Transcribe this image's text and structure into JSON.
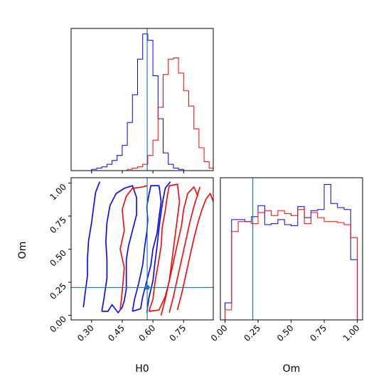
{
  "chart_data": {
    "type": "corner",
    "parameters": [
      "H0",
      "Om"
    ],
    "truth": {
      "H0": 0.572,
      "Om": 0.21
    },
    "colors": {
      "blue": "#0000ff",
      "red": "#ff0000",
      "truth": "#1f77b4"
    },
    "axes": {
      "H0": {
        "range": [
          0.2,
          0.895
        ],
        "ticks": [
          0.3,
          0.45,
          0.6,
          0.75
        ],
        "tick_labels": [
          "0.30",
          "0.45",
          "0.60",
          "0.75"
        ],
        "label": "H0"
      },
      "Om": {
        "range": [
          -0.035,
          1.04
        ],
        "ticks": [
          0.0,
          0.25,
          0.5,
          0.75,
          1.0
        ],
        "tick_labels": [
          "0.00",
          "0.25",
          "0.50",
          "0.75",
          "1.00"
        ],
        "label": "Om"
      }
    },
    "hist_H0": {
      "bin_edges": [
        0.2,
        0.225,
        0.25,
        0.275,
        0.3,
        0.325,
        0.35,
        0.375,
        0.4,
        0.425,
        0.45,
        0.475,
        0.5,
        0.525,
        0.55,
        0.575,
        0.6,
        0.625,
        0.65,
        0.675,
        0.7,
        0.725,
        0.75,
        0.775,
        0.8,
        0.825,
        0.85,
        0.875,
        0.895
      ],
      "blue": [
        0,
        0,
        0,
        0,
        1,
        2,
        3,
        5,
        8,
        12,
        20,
        38,
        60,
        88,
        108,
        103,
        75,
        41,
        14,
        5,
        2,
        1,
        0,
        0,
        0,
        0,
        0,
        0
      ],
      "red": [
        0,
        0,
        0,
        0,
        0,
        0,
        0,
        0,
        0,
        0,
        0,
        1,
        2,
        3,
        5,
        12,
        24,
        50,
        76,
        88,
        89,
        77,
        63,
        51,
        33,
        18,
        7,
        2
      ]
    },
    "hist_Om": {
      "bin_edges": [
        -0.035,
        0.0,
        0.05,
        0.1,
        0.15,
        0.2,
        0.25,
        0.3,
        0.35,
        0.4,
        0.45,
        0.5,
        0.55,
        0.6,
        0.65,
        0.7,
        0.75,
        0.8,
        0.85,
        0.9,
        0.95,
        1.0,
        1.04
      ],
      "blue": [
        0,
        17,
        100,
        100,
        98,
        103,
        114,
        95,
        96,
        100,
        95,
        94,
        113,
        102,
        109,
        110,
        135,
        116,
        112,
        110,
        60,
        0
      ],
      "red": [
        0,
        10,
        88,
        98,
        98,
        96,
        107,
        109,
        104,
        109,
        106,
        104,
        110,
        96,
        107,
        102,
        98,
        98,
        97,
        95,
        82,
        0
      ]
    },
    "contours_blue": [
      [
        [
          0.35,
          0.03
        ],
        [
          0.36,
          0.12
        ],
        [
          0.375,
          0.28
        ],
        [
          0.375,
          0.42
        ],
        [
          0.37,
          0.56
        ],
        [
          0.375,
          0.7
        ],
        [
          0.39,
          0.83
        ],
        [
          0.42,
          0.92
        ],
        [
          0.46,
          0.96
        ],
        [
          0.5,
          0.98
        ],
        [
          0.52,
          0.89
        ],
        [
          0.52,
          0.76
        ],
        [
          0.5,
          0.64
        ],
        [
          0.48,
          0.52
        ],
        [
          0.47,
          0.42
        ],
        [
          0.47,
          0.31
        ],
        [
          0.47,
          0.2
        ],
        [
          0.46,
          0.11
        ],
        [
          0.45,
          0.06
        ],
        [
          0.43,
          0.02
        ],
        [
          0.4,
          0.08
        ],
        [
          0.38,
          0.03
        ],
        [
          0.35,
          0.03
        ]
      ],
      [
        [
          0.5,
          0.03
        ],
        [
          0.51,
          0.12
        ],
        [
          0.53,
          0.24
        ],
        [
          0.55,
          0.38
        ],
        [
          0.56,
          0.52
        ],
        [
          0.57,
          0.63
        ],
        [
          0.575,
          0.72
        ],
        [
          0.57,
          0.82
        ],
        [
          0.58,
          0.91
        ],
        [
          0.59,
          0.98
        ],
        [
          0.63,
          0.98
        ],
        [
          0.64,
          0.86
        ],
        [
          0.63,
          0.74
        ],
        [
          0.62,
          0.62
        ],
        [
          0.6,
          0.5
        ],
        [
          0.59,
          0.38
        ],
        [
          0.57,
          0.26
        ],
        [
          0.55,
          0.14
        ],
        [
          0.54,
          0.05
        ],
        [
          0.5,
          0.03
        ]
      ],
      [
        [
          0.26,
          0.06
        ],
        [
          0.27,
          0.18
        ],
        [
          0.28,
          0.3
        ],
        [
          0.28,
          0.42
        ],
        [
          0.285,
          0.56
        ],
        [
          0.3,
          0.7
        ],
        [
          0.31,
          0.82
        ],
        [
          0.32,
          0.93
        ],
        [
          0.335,
          0.99
        ],
        [
          0.34,
          1.01
        ]
      ],
      [
        [
          0.57,
          0.02
        ],
        [
          0.58,
          0.13
        ],
        [
          0.6,
          0.26
        ],
        [
          0.61,
          0.4
        ],
        [
          0.62,
          0.52
        ],
        [
          0.63,
          0.66
        ],
        [
          0.64,
          0.78
        ],
        [
          0.65,
          0.88
        ],
        [
          0.66,
          0.96
        ],
        [
          0.685,
          1.01
        ]
      ]
    ],
    "contours_red": [
      [
        [
          0.58,
          0.03
        ],
        [
          0.6,
          0.12
        ],
        [
          0.61,
          0.25
        ],
        [
          0.625,
          0.38
        ],
        [
          0.64,
          0.52
        ],
        [
          0.645,
          0.66
        ],
        [
          0.66,
          0.79
        ],
        [
          0.67,
          0.9
        ],
        [
          0.68,
          0.98
        ],
        [
          0.72,
          0.99
        ],
        [
          0.73,
          0.86
        ],
        [
          0.72,
          0.74
        ],
        [
          0.71,
          0.62
        ],
        [
          0.7,
          0.5
        ],
        [
          0.69,
          0.38
        ],
        [
          0.68,
          0.26
        ],
        [
          0.66,
          0.14
        ],
        [
          0.63,
          0.04
        ],
        [
          0.58,
          0.03
        ]
      ],
      [
        [
          0.44,
          0.04
        ],
        [
          0.45,
          0.18
        ],
        [
          0.46,
          0.36
        ],
        [
          0.44,
          0.5
        ],
        [
          0.46,
          0.64
        ],
        [
          0.45,
          0.8
        ],
        [
          0.47,
          0.9
        ],
        [
          0.5,
          0.96
        ],
        [
          0.55,
          0.97
        ],
        [
          0.57,
          0.98
        ]
      ],
      [
        [
          0.64,
          0.0
        ],
        [
          0.66,
          0.12
        ],
        [
          0.68,
          0.26
        ],
        [
          0.7,
          0.4
        ],
        [
          0.72,
          0.54
        ],
        [
          0.74,
          0.68
        ],
        [
          0.75,
          0.8
        ],
        [
          0.77,
          0.92
        ],
        [
          0.8,
          0.97
        ],
        [
          0.82,
          0.9
        ]
      ],
      [
        [
          0.68,
          0.02
        ],
        [
          0.7,
          0.14
        ],
        [
          0.72,
          0.28
        ],
        [
          0.74,
          0.42
        ],
        [
          0.76,
          0.56
        ],
        [
          0.78,
          0.7
        ],
        [
          0.8,
          0.82
        ],
        [
          0.82,
          0.92
        ],
        [
          0.83,
          0.97
        ]
      ],
      [
        [
          0.72,
          0.04
        ],
        [
          0.74,
          0.16
        ],
        [
          0.76,
          0.3
        ],
        [
          0.78,
          0.44
        ],
        [
          0.8,
          0.58
        ],
        [
          0.82,
          0.7
        ],
        [
          0.84,
          0.8
        ],
        [
          0.86,
          0.88
        ],
        [
          0.88,
          0.92
        ],
        [
          0.895,
          0.86
        ]
      ]
    ]
  }
}
